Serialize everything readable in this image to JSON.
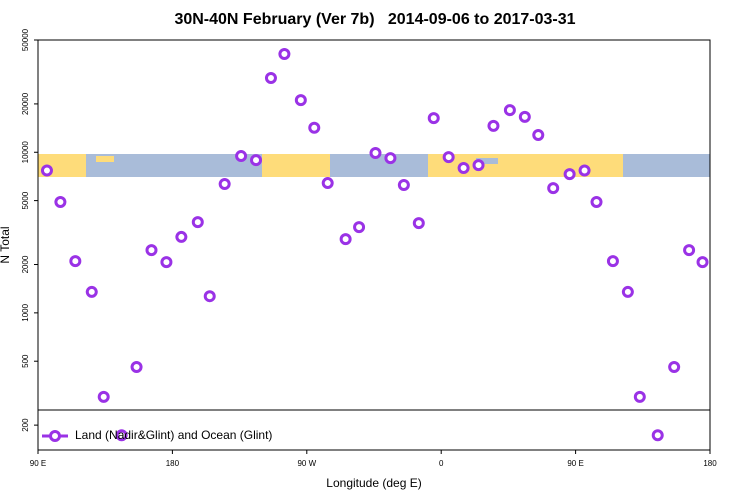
{
  "chart_data": {
    "type": "scatter",
    "title": "30N-40N February (Ver 7b)   2014-09-06 to 2017-03-31",
    "x_label": "Longitude (deg E)",
    "y_label": "N Total",
    "log_y": true,
    "xlim": [
      90,
      540
    ],
    "ylim": [
      140,
      50000
    ],
    "xticks": [
      {
        "value": 90,
        "label": "90 E"
      },
      180,
      {
        "value": 270,
        "label": "90 W"
      },
      {
        "value": 360,
        "label": "0"
      },
      {
        "value": 450,
        "label": "90 E"
      },
      {
        "value": 540,
        "label": "180"
      }
    ],
    "yticks": [
      200,
      500,
      1000,
      2000,
      5000,
      10000,
      20000,
      50000
    ],
    "legend": "bottom-left",
    "series": [
      {
        "name": "Land (Nadir&Glint) and Ocean (Glint)",
        "color": "#9a32e6",
        "x": [
          96,
          105,
          115,
          126,
          134,
          146,
          156,
          166,
          176,
          186,
          197,
          205,
          215,
          226,
          236,
          246,
          255,
          266,
          275,
          284,
          296,
          305,
          316,
          326,
          335,
          345,
          355,
          365,
          375,
          385,
          395,
          406,
          416,
          425,
          435,
          446,
          456,
          464,
          475,
          485,
          493,
          505,
          516,
          526,
          535
        ],
        "values": [
          7700,
          4900,
          2100,
          1350,
          300,
          173,
          460,
          2460,
          2070,
          2970,
          3670,
          1270,
          6340,
          9470,
          8940,
          29000,
          40900,
          21100,
          14200,
          6430,
          2880,
          3420,
          9890,
          9200,
          6250,
          3620,
          16300,
          9330,
          7980,
          8320,
          14600,
          18300,
          16600,
          12800,
          5980,
          7310,
          7700,
          4900,
          2100,
          1350,
          300,
          173,
          460,
          2460,
          2070
        ]
      }
    ]
  }
}
